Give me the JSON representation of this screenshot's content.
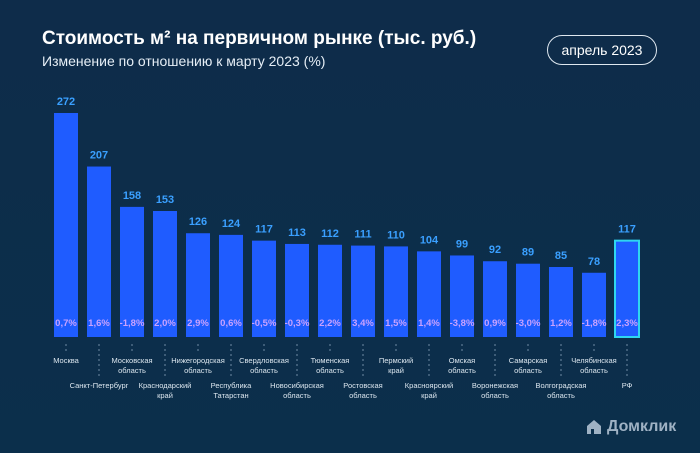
{
  "header": {
    "title": "Стоимость м² на первичном рынке (тыс. руб.)",
    "subtitle": "Изменение по отношению к марту 2023 (%)",
    "period": "апрель 2023"
  },
  "brand": "Домклик",
  "colors": {
    "bar": "#1f5cff",
    "highlight_border": "#2fd6f0",
    "value_label": "#3aa0ff",
    "change_label": "#c9a2ff",
    "background": "#0c2d4a"
  },
  "chart_data": {
    "type": "bar",
    "categories": [
      "Москва",
      "Санкт-Петербург",
      "Московская область",
      "Краснодарский край",
      "Нижегородская область",
      "Республика Татарстан",
      "Свердловская область",
      "Новосибирская область",
      "Тюменская область",
      "Ростовская область",
      "Пермский край",
      "Красноярский край",
      "Омская область",
      "Воронежская область",
      "Самарская область",
      "Волгоградская область",
      "Челябинская область",
      "РФ"
    ],
    "values": [
      272,
      207,
      158,
      153,
      126,
      124,
      117,
      113,
      112,
      111,
      110,
      104,
      99,
      92,
      89,
      85,
      78,
      117
    ],
    "change_labels": [
      "0,7%",
      "1,6%",
      "-1,8%",
      "2,0%",
      "2,9%",
      "0,6%",
      "-0,5%",
      "-0,3%",
      "2,2%",
      "3,4%",
      "1,5%",
      "1,4%",
      "-3,8%",
      "0,9%",
      "-3,0%",
      "1,2%",
      "-1,8%",
      "2,3%"
    ],
    "highlighted": "РФ",
    "ylim": [
      0,
      272
    ]
  }
}
